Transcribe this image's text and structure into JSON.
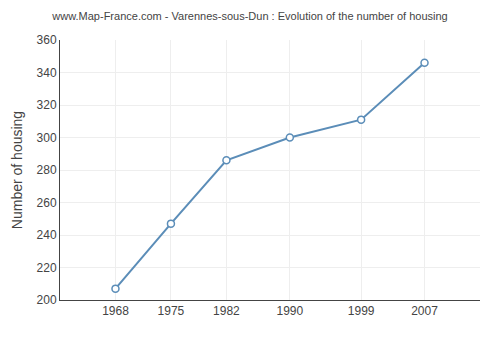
{
  "chart_data": {
    "type": "line",
    "title": "www.Map-France.com - Varennes-sous-Dun : Evolution of the number of housing",
    "ylabel": "Number of housing",
    "x": [
      1968,
      1975,
      1982,
      1990,
      1999,
      2007
    ],
    "values": [
      207,
      247,
      286,
      300,
      311,
      346
    ],
    "color": "#5b8db8",
    "marker": "circle",
    "xlim": [
      1961,
      2014
    ],
    "xticks": [
      1968,
      1975,
      1982,
      1990,
      1999,
      2007
    ],
    "ylim": [
      200,
      360
    ],
    "yticks": [
      200,
      220,
      240,
      260,
      280,
      300,
      320,
      340,
      360
    ],
    "grid": true
  }
}
